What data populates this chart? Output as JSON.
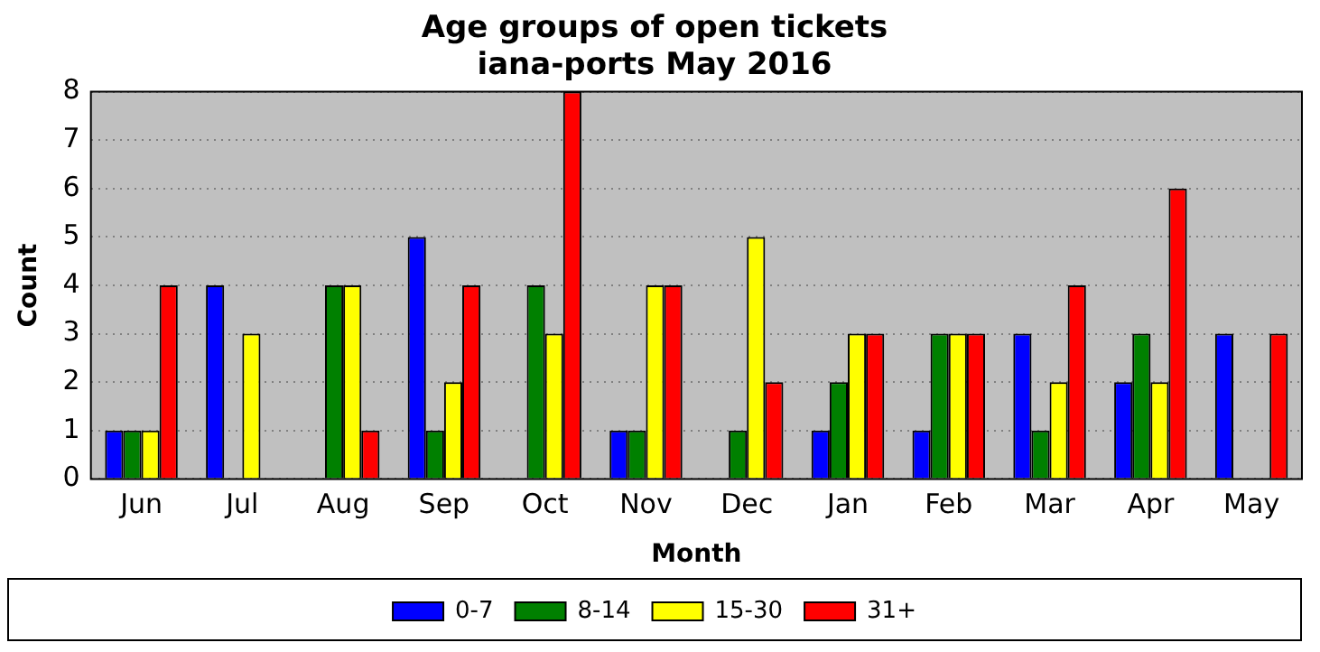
{
  "chart_data": {
    "type": "bar",
    "title": "Age groups of open tickets\niana-ports May 2016",
    "xlabel": "Month",
    "ylabel": "Count",
    "categories": [
      "Jun",
      "Jul",
      "Aug",
      "Sep",
      "Oct",
      "Nov",
      "Dec",
      "Jan",
      "Feb",
      "Mar",
      "Apr",
      "May"
    ],
    "series": [
      {
        "name": "0-7",
        "color": "#0000ff",
        "values": [
          1,
          4,
          0,
          5,
          0,
          1,
          0,
          1,
          1,
          3,
          2,
          3
        ]
      },
      {
        "name": "8-14",
        "color": "#008000",
        "values": [
          1,
          0,
          4,
          1,
          4,
          1,
          1,
          2,
          3,
          1,
          3,
          0
        ]
      },
      {
        "name": "15-30",
        "color": "#ffff00",
        "values": [
          1,
          3,
          4,
          2,
          3,
          4,
          5,
          3,
          3,
          2,
          2,
          0
        ]
      },
      {
        "name": "31+",
        "color": "#ff0000",
        "values": [
          4,
          0,
          1,
          4,
          8,
          4,
          2,
          3,
          3,
          4,
          6,
          3
        ]
      }
    ],
    "ylim": [
      0,
      8
    ],
    "yticks": [
      0,
      1,
      2,
      3,
      4,
      5,
      6,
      7,
      8
    ],
    "grid": "y",
    "legend": "bottom"
  }
}
